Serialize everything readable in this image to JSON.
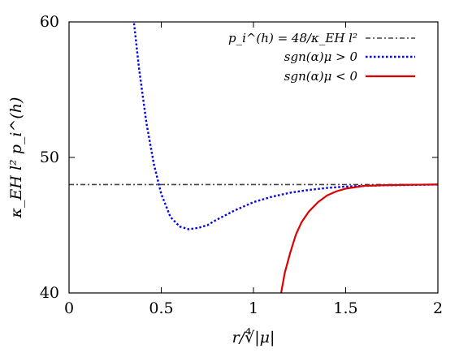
{
  "chart_data": {
    "type": "line",
    "xlabel": "r/∜|μ|",
    "ylabel": "κ_EH l² p_i^(h)",
    "xlim": [
      0,
      2
    ],
    "ylim": [
      40,
      60
    ],
    "x_ticks": [
      "0",
      "0.5",
      "1",
      "1.5",
      "2"
    ],
    "y_ticks": [
      "40",
      "50",
      "60"
    ],
    "legend_position": "top-right",
    "series": [
      {
        "name": "p_i^(h) = 48/κ_EH l²",
        "style": "dash-dot",
        "color": "#444444",
        "x": [
          0,
          2
        ],
        "y": [
          48,
          48
        ]
      },
      {
        "name": "sgn(α)μ > 0",
        "style": "dotted",
        "color": "#0000ee",
        "x": [
          0.35,
          0.38,
          0.42,
          0.46,
          0.5,
          0.55,
          0.6,
          0.65,
          0.7,
          0.75,
          0.8,
          0.9,
          1.0,
          1.1,
          1.2,
          1.3,
          1.4,
          1.5,
          1.6,
          1.7,
          1.8,
          1.9,
          2.0
        ],
        "y": [
          60.2,
          56.5,
          52.5,
          49.5,
          47.3,
          45.6,
          44.9,
          44.7,
          44.8,
          45.0,
          45.4,
          46.1,
          46.7,
          47.1,
          47.4,
          47.6,
          47.75,
          47.85,
          47.9,
          47.94,
          47.96,
          47.98,
          48.0
        ]
      },
      {
        "name": "sgn(α)μ < 0",
        "style": "solid",
        "color": "#dd0000",
        "x": [
          1.15,
          1.17,
          1.2,
          1.23,
          1.26,
          1.3,
          1.35,
          1.4,
          1.45,
          1.5,
          1.55,
          1.6,
          1.7,
          1.8,
          1.9,
          2.0
        ],
        "y": [
          40.0,
          41.5,
          43.0,
          44.3,
          45.2,
          46.0,
          46.7,
          47.2,
          47.5,
          47.7,
          47.8,
          47.9,
          47.95,
          47.97,
          47.99,
          48.0
        ]
      }
    ]
  }
}
